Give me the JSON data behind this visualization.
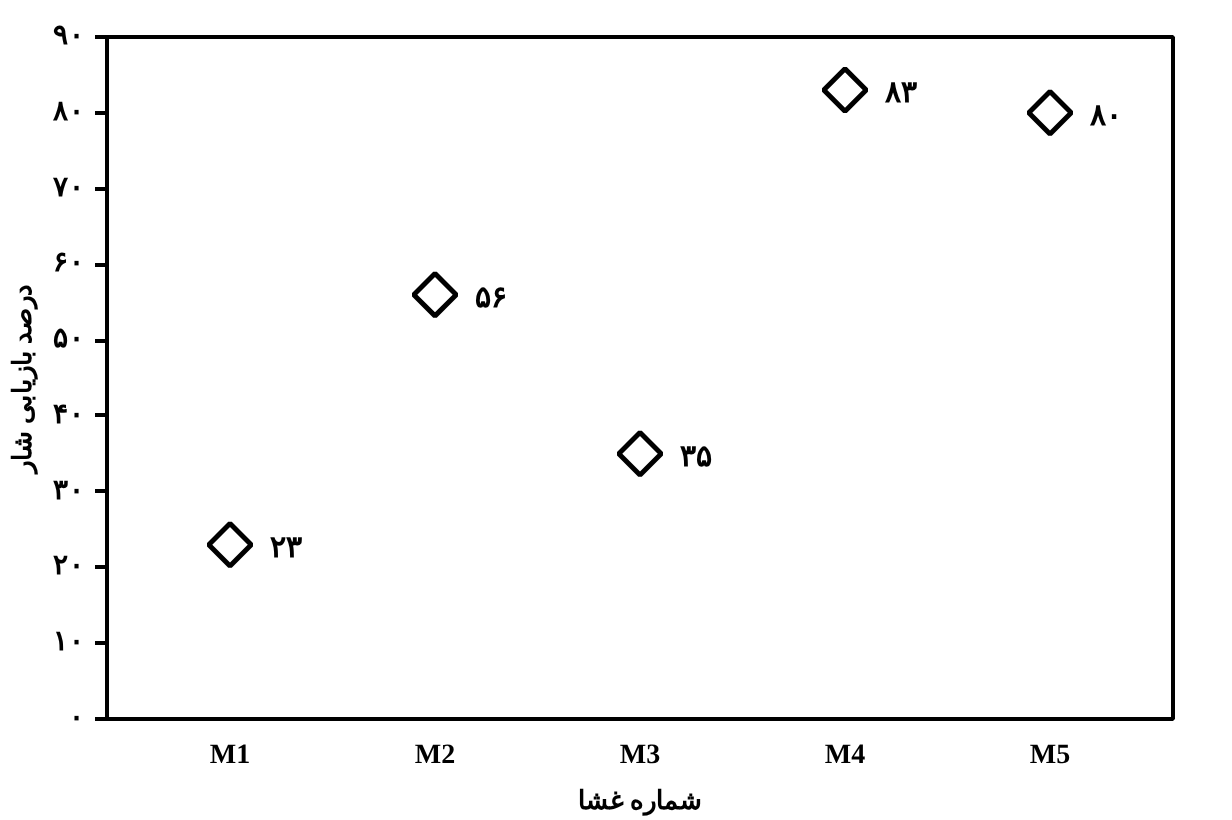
{
  "chart_data": {
    "type": "scatter",
    "xlabel": "شماره غشا",
    "ylabel": "درصد بازیابی شار",
    "categories": [
      "M1",
      "M2",
      "M3",
      "M4",
      "M5"
    ],
    "series": [
      {
        "color": "#000000",
        "values": [
          23,
          56,
          35,
          83,
          80
        ],
        "value_labels": [
          "۲۳",
          "۵۶",
          "۳۵",
          "۸۳",
          "۸۰"
        ]
      }
    ],
    "marker": "diamond",
    "ylim": [
      0,
      90
    ],
    "yticks": [
      {
        "value": 0,
        "label": "۰"
      },
      {
        "value": 10,
        "label": "۱۰"
      },
      {
        "value": 20,
        "label": "۲۰"
      },
      {
        "value": 30,
        "label": "۳۰"
      },
      {
        "value": 40,
        "label": "۴۰"
      },
      {
        "value": 50,
        "label": "۵۰"
      },
      {
        "value": 60,
        "label": "۶۰"
      },
      {
        "value": 70,
        "label": "۷۰"
      },
      {
        "value": 80,
        "label": "۸۰"
      },
      {
        "value": 90,
        "label": "۹۰"
      }
    ],
    "grid": false
  }
}
